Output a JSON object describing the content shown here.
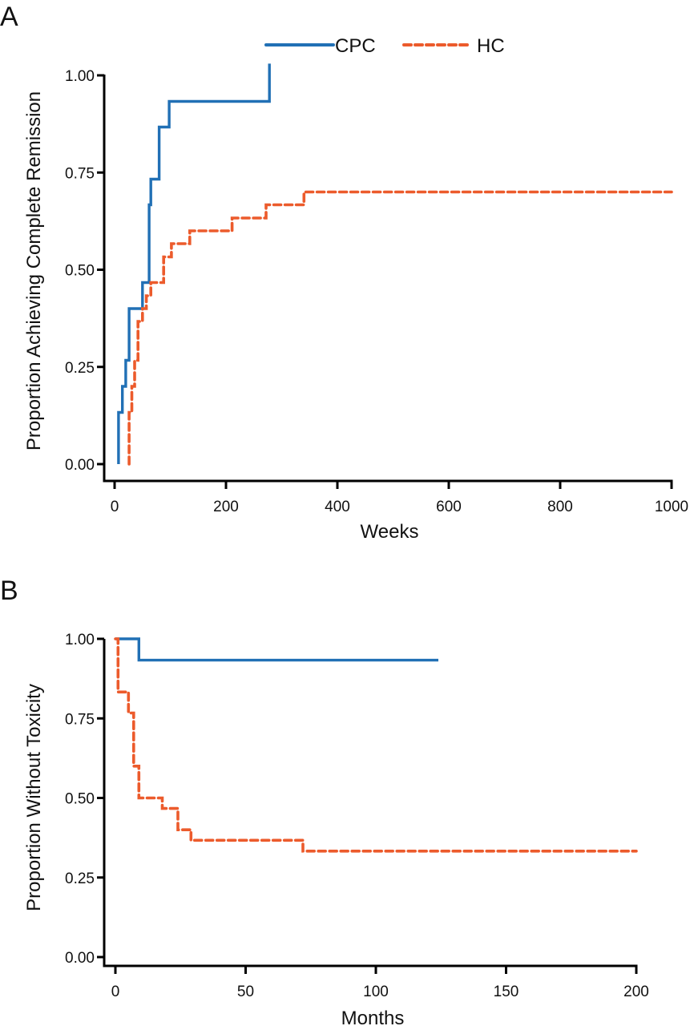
{
  "colors": {
    "CPC": "#2170b5",
    "HC": "#ec5b2c"
  },
  "legend": [
    {
      "name": "CPC",
      "style": "solid"
    },
    {
      "name": "HC",
      "style": "dashed"
    }
  ],
  "chart_data": [
    {
      "panel": "A",
      "type": "line",
      "step": true,
      "title": "",
      "xlabel": "Weeks",
      "ylabel": "Proportion Achieving Complete Remission",
      "xlim": [
        0,
        1000
      ],
      "ylim": [
        0,
        1
      ],
      "xticks": [
        "0",
        "200",
        "400",
        "600",
        "800",
        "1000"
      ],
      "xtick_values": [
        0,
        200,
        400,
        600,
        800,
        1000
      ],
      "yticks": [
        "0.00",
        "0.25",
        "0.50",
        "0.75",
        "1.00"
      ],
      "ytick_values": [
        0,
        0.25,
        0.5,
        0.75,
        1.0
      ],
      "legend_position": "top",
      "series": [
        {
          "name": "CPC",
          "x": [
            7,
            14,
            20,
            26,
            50,
            62,
            65,
            80,
            98,
            278,
            278
          ],
          "y": [
            0.133,
            0.2,
            0.267,
            0.4,
            0.467,
            0.667,
            0.733,
            0.867,
            0.933,
            1.0,
            1.03
          ],
          "start": [
            7,
            0
          ]
        },
        {
          "name": "HC",
          "x": [
            26,
            31,
            36,
            42,
            50,
            57,
            65,
            88,
            102,
            135,
            211,
            272,
            340,
            1000
          ],
          "y": [
            0.133,
            0.2,
            0.267,
            0.367,
            0.4,
            0.433,
            0.467,
            0.533,
            0.567,
            0.6,
            0.633,
            0.667,
            0.7,
            0.7
          ],
          "start": [
            26,
            0
          ]
        }
      ]
    },
    {
      "panel": "B",
      "type": "line",
      "step": true,
      "title": "",
      "xlabel": "Months",
      "ylabel": "Proportion Without Toxicity",
      "xlim": [
        0,
        200
      ],
      "ylim": [
        0,
        1
      ],
      "xticks": [
        "0",
        "50",
        "100",
        "150",
        "200"
      ],
      "xtick_values": [
        0,
        50,
        100,
        150,
        200
      ],
      "yticks": [
        "0.00",
        "0.25",
        "0.50",
        "0.75",
        "1.00"
      ],
      "ytick_values": [
        0,
        0.25,
        0.5,
        0.75,
        1.0
      ],
      "series": [
        {
          "name": "CPC",
          "x": [
            9,
            124
          ],
          "y": [
            0.933,
            0.933
          ],
          "start": [
            0,
            1.0
          ]
        },
        {
          "name": "HC",
          "x": [
            1,
            5,
            7,
            9,
            18,
            24,
            29,
            72,
            200
          ],
          "y": [
            0.833,
            0.767,
            0.6,
            0.5,
            0.467,
            0.4,
            0.367,
            0.333,
            0.333
          ],
          "start": [
            0,
            1.0
          ]
        }
      ]
    }
  ]
}
